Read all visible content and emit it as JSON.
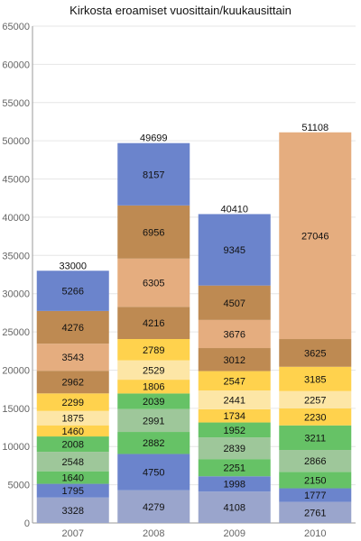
{
  "chart_data": {
    "type": "bar",
    "stacked": true,
    "title": "Kirkosta eroamiset vuosittain/kuukausittain",
    "xlabel": "",
    "ylabel": "",
    "categories": [
      "2007",
      "2008",
      "2009",
      "2010"
    ],
    "ylim": [
      0,
      65000
    ],
    "yticks": [
      "0",
      "5000",
      "10000",
      "15000",
      "20000",
      "25000",
      "30000",
      "35000",
      "40000",
      "45000",
      "50000",
      "55000",
      "60000",
      "65000"
    ],
    "totals": [
      "33000",
      "49699",
      "40410",
      "51108"
    ],
    "grid": true,
    "legend": "none",
    "series": [
      {
        "color": "#9aa5cc",
        "values": [
          3328,
          4279,
          4108,
          2761
        ]
      },
      {
        "color": "#6b84cc",
        "values": [
          1795,
          4750,
          1998,
          1777
        ]
      },
      {
        "color": "#66c266",
        "values": [
          1640,
          2882,
          2251,
          2150
        ]
      },
      {
        "color": "#9ec79a",
        "values": [
          2548,
          2991,
          2839,
          2866
        ]
      },
      {
        "color": "#66c266",
        "values": [
          2008,
          2039,
          1952,
          3211
        ]
      },
      {
        "color": "#ffd24d",
        "values": [
          1460,
          1806,
          1734,
          2230
        ]
      },
      {
        "color": "#fde6a6",
        "values": [
          1875,
          2529,
          2441,
          2257
        ]
      },
      {
        "color": "#ffd24d",
        "values": [
          2299,
          2789,
          2547,
          3185
        ]
      },
      {
        "color": "#be8a52",
        "values": [
          2962,
          4216,
          3012,
          3625
        ]
      },
      {
        "color": "#e5ad7f",
        "values": [
          3543,
          6305,
          3676,
          27046
        ]
      },
      {
        "color": "#be8a52",
        "values": [
          4276,
          6956,
          4507,
          null
        ]
      },
      {
        "color": "#6b84cc",
        "values": [
          5266,
          8157,
          9345,
          null
        ]
      }
    ]
  }
}
